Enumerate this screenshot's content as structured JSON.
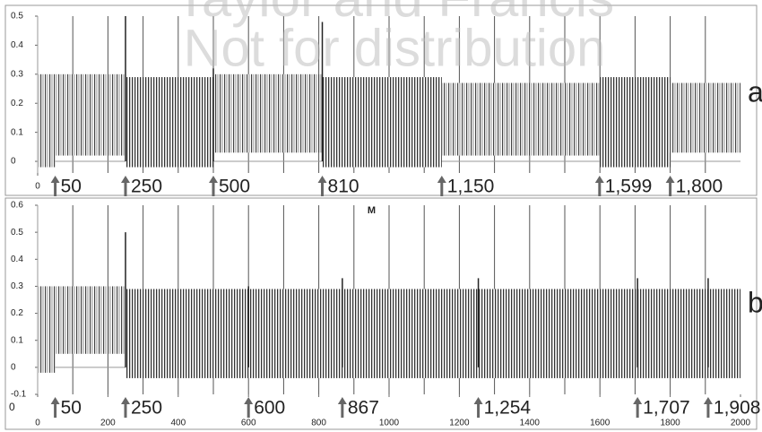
{
  "chart_data": [
    {
      "type": "oscillation",
      "panel_label": "a",
      "watermark": [
        "Taylor and Francis",
        "Not for distribution"
      ],
      "xlim": [
        0,
        2000
      ],
      "ylim": [
        -0.04,
        0.5
      ],
      "xticks": [
        0
      ],
      "yticks": [
        0,
        0.1,
        0.2,
        0.3,
        0.4,
        0.5
      ],
      "x_minor_ticks": [
        100,
        200,
        300,
        400,
        500,
        600,
        700,
        800,
        900,
        1000,
        1100,
        1200,
        1300,
        1400,
        1500,
        1600,
        1700,
        1800,
        1900
      ],
      "segments": [
        {
          "x": [
            0,
            50
          ],
          "max": 0.3,
          "min": -0.02,
          "pattern": "irregular"
        },
        {
          "x": [
            50,
            250
          ],
          "max": 0.3,
          "min": 0.02,
          "pattern": "irregular"
        },
        {
          "x": [
            250,
            500
          ],
          "max": 0.29,
          "min": -0.02,
          "pattern": "regular"
        },
        {
          "x": [
            500,
            810
          ],
          "max": 0.3,
          "min": 0.03,
          "pattern": "irregular"
        },
        {
          "x": [
            810,
            1150
          ],
          "max": 0.29,
          "min": -0.02,
          "pattern": "regular"
        },
        {
          "x": [
            1150,
            1599
          ],
          "max": 0.27,
          "min": 0.02,
          "pattern": "irregular"
        },
        {
          "x": [
            1599,
            1800
          ],
          "max": 0.29,
          "min": -0.02,
          "pattern": "regular"
        },
        {
          "x": [
            1800,
            2000
          ],
          "max": 0.27,
          "min": 0.03,
          "pattern": "irregular"
        }
      ],
      "spikes": {
        "x": [
          250,
          500,
          810
        ],
        "y": [
          0.5,
          0.32,
          0.48
        ]
      },
      "annotations": [
        {
          "x": 50,
          "label": "50"
        },
        {
          "x": 250,
          "label": "250"
        },
        {
          "x": 500,
          "label": "500"
        },
        {
          "x": 810,
          "label": "810"
        },
        {
          "x": 1150,
          "label": "1,150"
        },
        {
          "x": 1599,
          "label": "1,599"
        },
        {
          "x": 1800,
          "label": "1,800"
        }
      ]
    },
    {
      "type": "oscillation",
      "panel_label": "b",
      "marker": {
        "x": 950,
        "y": 0.58,
        "label": "M"
      },
      "origin_label": "0",
      "xlim": [
        0,
        2000
      ],
      "ylim": [
        -0.1,
        0.6
      ],
      "xticks": [
        0,
        200,
        400,
        600,
        800,
        1000,
        1200,
        1400,
        1600,
        1800,
        2000
      ],
      "yticks": [
        -0.1,
        0,
        0.1,
        0.2,
        0.3,
        0.4,
        0.5,
        0.6
      ],
      "x_minor_ticks": [
        100,
        200,
        300,
        400,
        500,
        600,
        700,
        800,
        900,
        1000,
        1100,
        1200,
        1300,
        1400,
        1500,
        1600,
        1700,
        1800,
        1900
      ],
      "segments": [
        {
          "x": [
            0,
            50
          ],
          "max": 0.3,
          "min": -0.02,
          "pattern": "irregular"
        },
        {
          "x": [
            50,
            250
          ],
          "max": 0.3,
          "min": 0.05,
          "pattern": "irregular"
        },
        {
          "x": [
            250,
            2000
          ],
          "max": 0.29,
          "min": -0.04,
          "pattern": "regular"
        }
      ],
      "spikes": {
        "x": [
          250,
          600,
          867,
          1254,
          1707,
          1908
        ],
        "y": [
          0.5,
          0.3,
          0.33,
          0.33,
          0.33,
          0.33
        ]
      },
      "annotations": [
        {
          "x": 50,
          "label": "50"
        },
        {
          "x": 250,
          "label": "250"
        },
        {
          "x": 600,
          "label": "600"
        },
        {
          "x": 867,
          "label": "867"
        },
        {
          "x": 1254,
          "label": "1,254"
        },
        {
          "x": 1707,
          "label": "1,707"
        },
        {
          "x": 1908,
          "label": "1,908"
        }
      ]
    }
  ]
}
